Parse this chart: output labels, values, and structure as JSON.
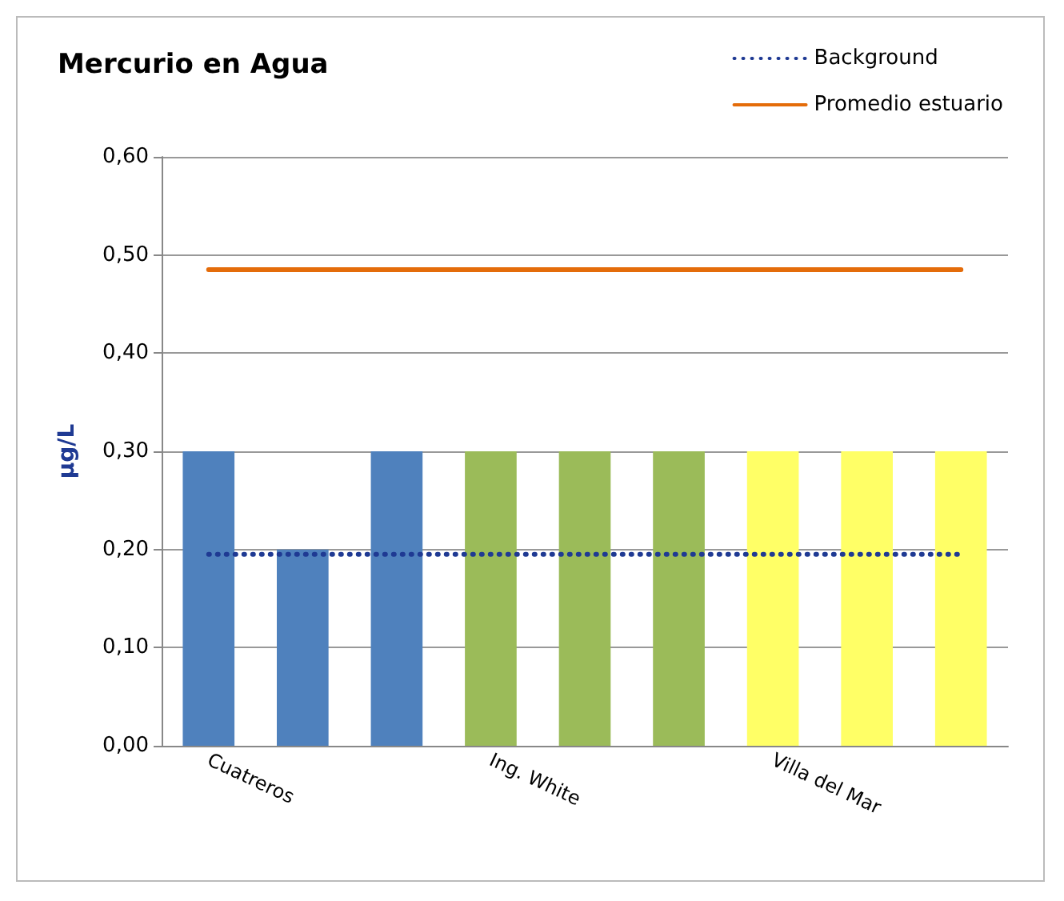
{
  "chart_data": {
    "type": "bar",
    "title": "Mercurio en Agua",
    "ylabel": "µg/L",
    "categories": [
      "Cuatreros",
      null,
      null,
      "Ing. White",
      null,
      null,
      "Villa del Mar",
      null,
      null
    ],
    "series": [
      {
        "colors": [
          "#4f81bd",
          "#4f81bd",
          "#4f81bd",
          "#9bbb59",
          "#9bbb59",
          "#9bbb59",
          "#ffff66",
          "#ffff66",
          "#ffff66"
        ],
        "values": [
          0.3,
          0.2,
          0.3,
          0.3,
          0.3,
          0.3,
          0.3,
          0.3,
          0.3
        ]
      },
      {
        "type": "line",
        "name": "Background",
        "color": "#1f3a93",
        "line_style": "dotted",
        "values": [
          0.195,
          0.195,
          0.195,
          0.195,
          0.195,
          0.195,
          0.195,
          0.195,
          0.195
        ]
      },
      {
        "type": "line",
        "name": "Promedio estuario",
        "color": "#e46c0a",
        "line_style": "solid",
        "values": [
          0.485,
          0.485,
          0.485,
          0.485,
          0.485,
          0.485,
          0.485,
          0.485,
          0.485
        ]
      }
    ],
    "ylim": [
      0,
      0.6
    ],
    "yticks": [
      {
        "value": 0,
        "label": "0,00"
      },
      {
        "value": 0.1,
        "label": "0,10"
      },
      {
        "value": 0.2,
        "label": "0,20"
      },
      {
        "value": 0.3,
        "label": "0,30"
      },
      {
        "value": 0.4,
        "label": "0,40"
      },
      {
        "value": 0.5,
        "label": "0,50"
      },
      {
        "value": 0.6,
        "label": "0,60"
      }
    ],
    "grid": "y",
    "legend": "top right",
    "marker": "none"
  }
}
